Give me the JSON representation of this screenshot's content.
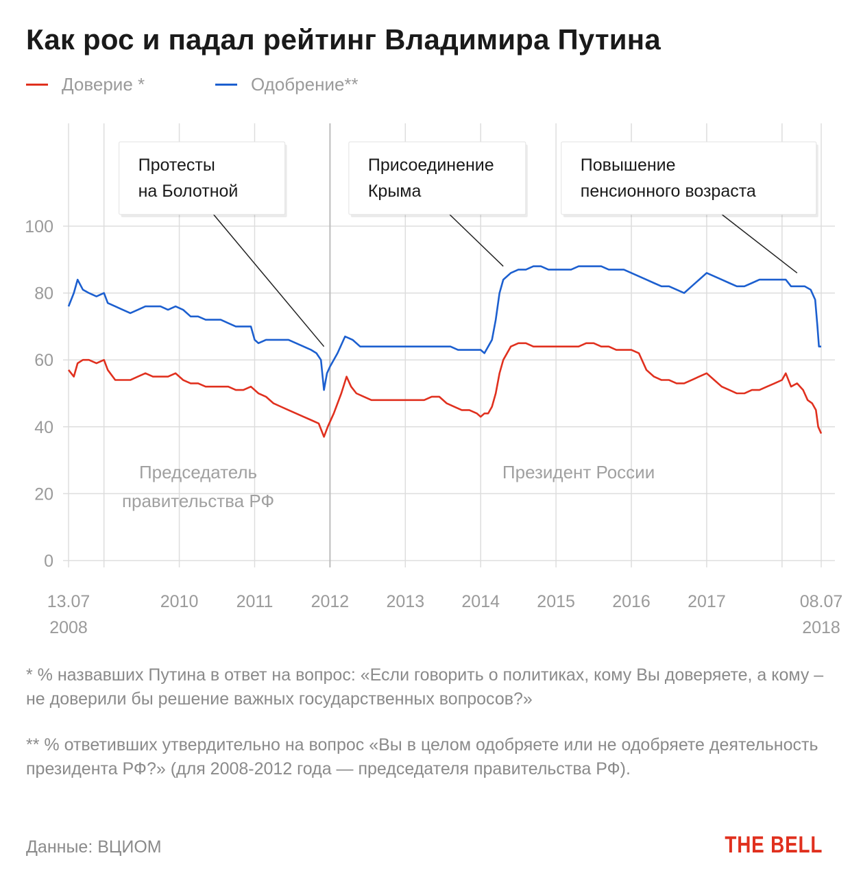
{
  "title": "Как рос и падал рейтинг Владимира Путина",
  "colors": {
    "trust": "#e0301e",
    "approval": "#1c5fcf",
    "grid": "#dddddd",
    "text": "#9a9a9a"
  },
  "legend": {
    "trust": "Доверие *",
    "approval": "Одобрение**"
  },
  "notes": {
    "trust": "* % назвавших Путина в ответ на вопрос: «Если говорить о политиках, кому Вы доверяете, а кому – не доверили бы решение важных государственных вопросов?»",
    "approval": "** % ответивших утвердительно на вопрос «Вы в целом одобряете или не одобряете деятельность президента РФ?» (для 2008-2012 года — председателя правительства РФ)."
  },
  "source": "Данные: ВЦИОМ",
  "brand": "THE BELL",
  "chart_data": {
    "type": "line",
    "title": "Как рос и падал рейтинг Владимира Путина",
    "x_range": [
      2008.53,
      2018.52
    ],
    "ylim": [
      0,
      100
    ],
    "y_ticks": [
      0,
      20,
      40,
      60,
      80,
      100
    ],
    "x_tick_labels": [
      {
        "x": 2008.53,
        "line1": "13.07",
        "line2": "2008"
      },
      {
        "x": 2010.0,
        "line1": "2010",
        "line2": ""
      },
      {
        "x": 2011.0,
        "line1": "2011",
        "line2": ""
      },
      {
        "x": 2012.0,
        "line1": "2012",
        "line2": ""
      },
      {
        "x": 2013.0,
        "line1": "2013",
        "line2": ""
      },
      {
        "x": 2014.0,
        "line1": "2014",
        "line2": ""
      },
      {
        "x": 2015.0,
        "line1": "2015",
        "line2": ""
      },
      {
        "x": 2016.0,
        "line1": "2016",
        "line2": ""
      },
      {
        "x": 2017.0,
        "line1": "2017",
        "line2": ""
      },
      {
        "x": 2018.52,
        "line1": "08.07",
        "line2": "2018"
      }
    ],
    "extra_gridlines_x": [
      2009.0,
      2018.0
    ],
    "grid": true,
    "legend_position": "top-left",
    "period_divider_x": 2012.0,
    "period_labels": [
      {
        "text": [
          "Председатель",
          "правительства РФ"
        ],
        "x": 2010.25,
        "y": 24
      },
      {
        "text": [
          "Президент России"
        ],
        "x": 2015.3,
        "y": 24
      }
    ],
    "annotations": [
      {
        "lines": [
          "Протесты",
          "на Болотной"
        ],
        "target": [
          2011.92,
          64
        ],
        "box_x": 2009.2
      },
      {
        "lines": [
          "Присоединение",
          "Крыма"
        ],
        "target": [
          2014.3,
          88
        ],
        "box_x": 2012.25
      },
      {
        "lines": [
          "Повышение",
          "пенсионного возраста"
        ],
        "target": [
          2018.2,
          86
        ],
        "box_x": 2015.07
      }
    ],
    "series": [
      {
        "name": "Одобрение**",
        "key": "approval",
        "points": [
          [
            2008.53,
            76
          ],
          [
            2008.6,
            80
          ],
          [
            2008.65,
            84
          ],
          [
            2008.72,
            81
          ],
          [
            2008.8,
            80
          ],
          [
            2008.9,
            79
          ],
          [
            2009.0,
            80
          ],
          [
            2009.05,
            77
          ],
          [
            2009.15,
            76
          ],
          [
            2009.25,
            75
          ],
          [
            2009.35,
            74
          ],
          [
            2009.45,
            75
          ],
          [
            2009.55,
            76
          ],
          [
            2009.65,
            76
          ],
          [
            2009.75,
            76
          ],
          [
            2009.85,
            75
          ],
          [
            2009.95,
            76
          ],
          [
            2010.05,
            75
          ],
          [
            2010.15,
            73
          ],
          [
            2010.25,
            73
          ],
          [
            2010.35,
            72
          ],
          [
            2010.45,
            72
          ],
          [
            2010.55,
            72
          ],
          [
            2010.65,
            71
          ],
          [
            2010.75,
            70
          ],
          [
            2010.85,
            70
          ],
          [
            2010.95,
            70
          ],
          [
            2011.0,
            66
          ],
          [
            2011.05,
            65
          ],
          [
            2011.15,
            66
          ],
          [
            2011.25,
            66
          ],
          [
            2011.35,
            66
          ],
          [
            2011.45,
            66
          ],
          [
            2011.55,
            65
          ],
          [
            2011.65,
            64
          ],
          [
            2011.75,
            63
          ],
          [
            2011.82,
            62
          ],
          [
            2011.88,
            60
          ],
          [
            2011.92,
            51
          ],
          [
            2011.96,
            56
          ],
          [
            2012.0,
            58
          ],
          [
            2012.1,
            62
          ],
          [
            2012.2,
            67
          ],
          [
            2012.3,
            66
          ],
          [
            2012.4,
            64
          ],
          [
            2012.5,
            64
          ],
          [
            2012.6,
            64
          ],
          [
            2012.7,
            64
          ],
          [
            2012.8,
            64
          ],
          [
            2012.9,
            64
          ],
          [
            2013.0,
            64
          ],
          [
            2013.1,
            64
          ],
          [
            2013.2,
            64
          ],
          [
            2013.3,
            64
          ],
          [
            2013.4,
            64
          ],
          [
            2013.5,
            64
          ],
          [
            2013.6,
            64
          ],
          [
            2013.7,
            63
          ],
          [
            2013.8,
            63
          ],
          [
            2013.9,
            63
          ],
          [
            2014.0,
            63
          ],
          [
            2014.05,
            62
          ],
          [
            2014.1,
            64
          ],
          [
            2014.15,
            66
          ],
          [
            2014.2,
            72
          ],
          [
            2014.25,
            80
          ],
          [
            2014.3,
            84
          ],
          [
            2014.4,
            86
          ],
          [
            2014.5,
            87
          ],
          [
            2014.6,
            87
          ],
          [
            2014.7,
            88
          ],
          [
            2014.8,
            88
          ],
          [
            2014.9,
            87
          ],
          [
            2015.0,
            87
          ],
          [
            2015.1,
            87
          ],
          [
            2015.2,
            87
          ],
          [
            2015.3,
            88
          ],
          [
            2015.4,
            88
          ],
          [
            2015.5,
            88
          ],
          [
            2015.6,
            88
          ],
          [
            2015.7,
            87
          ],
          [
            2015.8,
            87
          ],
          [
            2015.9,
            87
          ],
          [
            2016.0,
            86
          ],
          [
            2016.1,
            85
          ],
          [
            2016.2,
            84
          ],
          [
            2016.3,
            83
          ],
          [
            2016.4,
            82
          ],
          [
            2016.5,
            82
          ],
          [
            2016.6,
            81
          ],
          [
            2016.7,
            80
          ],
          [
            2016.8,
            82
          ],
          [
            2016.9,
            84
          ],
          [
            2017.0,
            86
          ],
          [
            2017.1,
            85
          ],
          [
            2017.2,
            84
          ],
          [
            2017.3,
            83
          ],
          [
            2017.4,
            82
          ],
          [
            2017.5,
            82
          ],
          [
            2017.6,
            83
          ],
          [
            2017.7,
            84
          ],
          [
            2017.8,
            84
          ],
          [
            2017.9,
            84
          ],
          [
            2018.0,
            84
          ],
          [
            2018.05,
            84
          ],
          [
            2018.12,
            82
          ],
          [
            2018.2,
            82
          ],
          [
            2018.3,
            82
          ],
          [
            2018.38,
            81
          ],
          [
            2018.44,
            78
          ],
          [
            2018.47,
            70
          ],
          [
            2018.49,
            64
          ],
          [
            2018.52,
            64
          ]
        ]
      },
      {
        "name": "Доверие *",
        "key": "trust",
        "points": [
          [
            2008.53,
            57
          ],
          [
            2008.6,
            55
          ],
          [
            2008.65,
            59
          ],
          [
            2008.72,
            60
          ],
          [
            2008.8,
            60
          ],
          [
            2008.9,
            59
          ],
          [
            2009.0,
            60
          ],
          [
            2009.05,
            57
          ],
          [
            2009.15,
            54
          ],
          [
            2009.25,
            54
          ],
          [
            2009.35,
            54
          ],
          [
            2009.45,
            55
          ],
          [
            2009.55,
            56
          ],
          [
            2009.65,
            55
          ],
          [
            2009.75,
            55
          ],
          [
            2009.85,
            55
          ],
          [
            2009.95,
            56
          ],
          [
            2010.05,
            54
          ],
          [
            2010.15,
            53
          ],
          [
            2010.25,
            53
          ],
          [
            2010.35,
            52
          ],
          [
            2010.45,
            52
          ],
          [
            2010.55,
            52
          ],
          [
            2010.65,
            52
          ],
          [
            2010.75,
            51
          ],
          [
            2010.85,
            51
          ],
          [
            2010.95,
            52
          ],
          [
            2011.05,
            50
          ],
          [
            2011.15,
            49
          ],
          [
            2011.25,
            47
          ],
          [
            2011.35,
            46
          ],
          [
            2011.45,
            45
          ],
          [
            2011.55,
            44
          ],
          [
            2011.65,
            43
          ],
          [
            2011.75,
            42
          ],
          [
            2011.85,
            41
          ],
          [
            2011.92,
            37
          ],
          [
            2011.97,
            40
          ],
          [
            2012.05,
            44
          ],
          [
            2012.15,
            50
          ],
          [
            2012.22,
            55
          ],
          [
            2012.28,
            52
          ],
          [
            2012.35,
            50
          ],
          [
            2012.45,
            49
          ],
          [
            2012.55,
            48
          ],
          [
            2012.65,
            48
          ],
          [
            2012.75,
            48
          ],
          [
            2012.85,
            48
          ],
          [
            2012.95,
            48
          ],
          [
            2013.05,
            48
          ],
          [
            2013.15,
            48
          ],
          [
            2013.25,
            48
          ],
          [
            2013.35,
            49
          ],
          [
            2013.45,
            49
          ],
          [
            2013.55,
            47
          ],
          [
            2013.65,
            46
          ],
          [
            2013.75,
            45
          ],
          [
            2013.85,
            45
          ],
          [
            2013.95,
            44
          ],
          [
            2014.0,
            43
          ],
          [
            2014.05,
            44
          ],
          [
            2014.1,
            44
          ],
          [
            2014.15,
            46
          ],
          [
            2014.2,
            50
          ],
          [
            2014.25,
            56
          ],
          [
            2014.3,
            60
          ],
          [
            2014.4,
            64
          ],
          [
            2014.5,
            65
          ],
          [
            2014.6,
            65
          ],
          [
            2014.7,
            64
          ],
          [
            2014.8,
            64
          ],
          [
            2014.9,
            64
          ],
          [
            2015.0,
            64
          ],
          [
            2015.1,
            64
          ],
          [
            2015.2,
            64
          ],
          [
            2015.3,
            64
          ],
          [
            2015.4,
            65
          ],
          [
            2015.5,
            65
          ],
          [
            2015.6,
            64
          ],
          [
            2015.7,
            64
          ],
          [
            2015.8,
            63
          ],
          [
            2015.9,
            63
          ],
          [
            2016.0,
            63
          ],
          [
            2016.1,
            62
          ],
          [
            2016.2,
            57
          ],
          [
            2016.3,
            55
          ],
          [
            2016.4,
            54
          ],
          [
            2016.5,
            54
          ],
          [
            2016.6,
            53
          ],
          [
            2016.7,
            53
          ],
          [
            2016.8,
            54
          ],
          [
            2016.9,
            55
          ],
          [
            2017.0,
            56
          ],
          [
            2017.1,
            54
          ],
          [
            2017.2,
            52
          ],
          [
            2017.3,
            51
          ],
          [
            2017.4,
            50
          ],
          [
            2017.5,
            50
          ],
          [
            2017.6,
            51
          ],
          [
            2017.7,
            51
          ],
          [
            2017.8,
            52
          ],
          [
            2017.9,
            53
          ],
          [
            2018.0,
            54
          ],
          [
            2018.05,
            56
          ],
          [
            2018.12,
            52
          ],
          [
            2018.2,
            53
          ],
          [
            2018.28,
            51
          ],
          [
            2018.34,
            48
          ],
          [
            2018.4,
            47
          ],
          [
            2018.45,
            45
          ],
          [
            2018.48,
            40
          ],
          [
            2018.52,
            38
          ]
        ]
      }
    ]
  }
}
